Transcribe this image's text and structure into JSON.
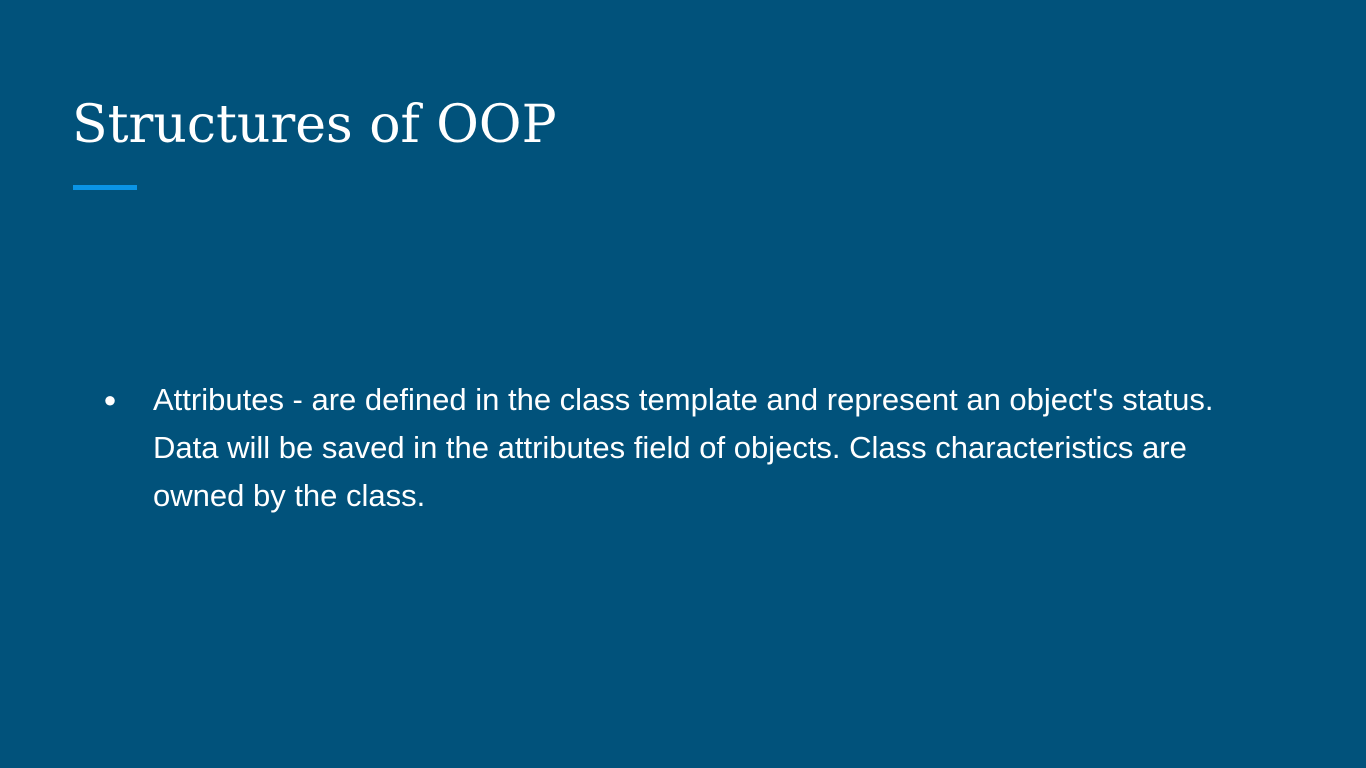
{
  "slide": {
    "title": "Structures of OOP",
    "bullets": [
      {
        "marker": "●",
        "text": "Attributes - are defined in the class template and represent an object's status. Data will be saved in the attributes field of objects. Class characteristics are owned by the class."
      }
    ]
  },
  "colors": {
    "background": "#01527b",
    "accent": "#0a94e6",
    "text": "#ffffff"
  }
}
